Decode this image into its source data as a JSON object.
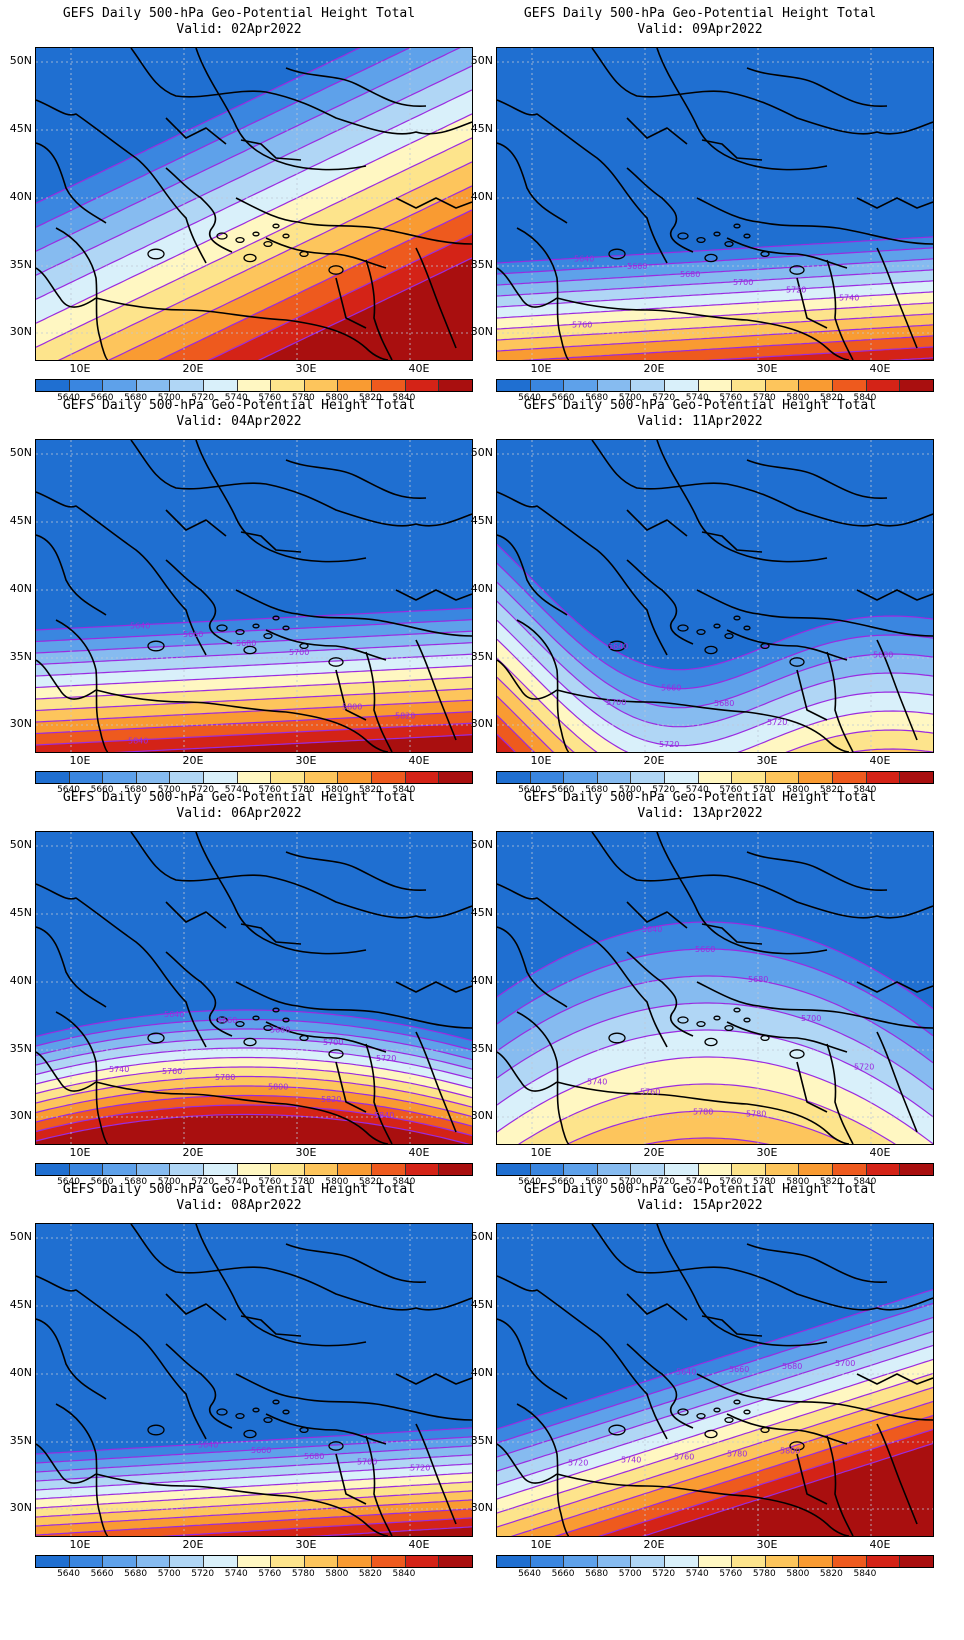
{
  "title_line1": "GEFS Daily 500-hPa Geo-Potential Height Total",
  "y_ticks": [
    "50N",
    "45N",
    "40N",
    "35N",
    "30N"
  ],
  "x_ticks": [
    "10E",
    "20E",
    "30E",
    "40E"
  ],
  "legend": {
    "levels": [
      "5640",
      "5660",
      "5680",
      "5700",
      "5720",
      "5740",
      "5760",
      "5780",
      "5800",
      "5820",
      "5840"
    ],
    "colors": [
      "#1f6fd1",
      "#3a86e0",
      "#5ea1ea",
      "#86bbf0",
      "#b0d6f5",
      "#d9f0fa",
      "#fff7c2",
      "#fde48c",
      "#fdc55c",
      "#f99b32",
      "#ee5a1e",
      "#d42317",
      "#a90f0f"
    ]
  },
  "contour_color": "#9a2be0",
  "land_color": "#000000",
  "panels": [
    {
      "valid": "Valid: 02Apr2022",
      "shape": "ridge",
      "labels": []
    },
    {
      "valid": "Valid: 09Apr2022",
      "shape": "zonal-south",
      "labels": [
        "5640",
        "5660",
        "5680",
        "5700",
        "5720",
        "5740",
        "5760"
      ]
    },
    {
      "valid": "Valid: 04Apr2022",
      "shape": "zonal-mid",
      "labels": [
        "5640",
        "5660",
        "5680",
        "5700",
        "5800",
        "5820",
        "5840"
      ]
    },
    {
      "valid": "Valid: 11Apr2022",
      "shape": "trough",
      "labels": [
        "5640",
        "5660",
        "5680",
        "5720",
        "5800",
        "5680",
        "5700",
        "5720",
        "5740",
        "5760",
        "5780"
      ]
    },
    {
      "valid": "Valid: 06Apr2022",
      "shape": "arc",
      "labels": [
        "5640",
        "5660",
        "5680",
        "5700",
        "5720",
        "5740",
        "5760",
        "5780",
        "5800",
        "5820",
        "5840"
      ]
    },
    {
      "valid": "Valid: 13Apr2022",
      "shape": "dome",
      "labels": [
        "5640",
        "5660",
        "5680",
        "5700",
        "5720",
        "5740",
        "5760",
        "5780",
        "5780"
      ]
    },
    {
      "valid": "Valid: 08Apr2022",
      "shape": "zonal-low",
      "labels": [
        "5640",
        "5660",
        "5680",
        "5700",
        "5720"
      ]
    },
    {
      "valid": "Valid: 15Apr2022",
      "shape": "tilted",
      "labels": [
        "5640",
        "5660",
        "5680",
        "5700",
        "5720",
        "5740",
        "5760",
        "5780",
        "5800"
      ]
    }
  ]
}
